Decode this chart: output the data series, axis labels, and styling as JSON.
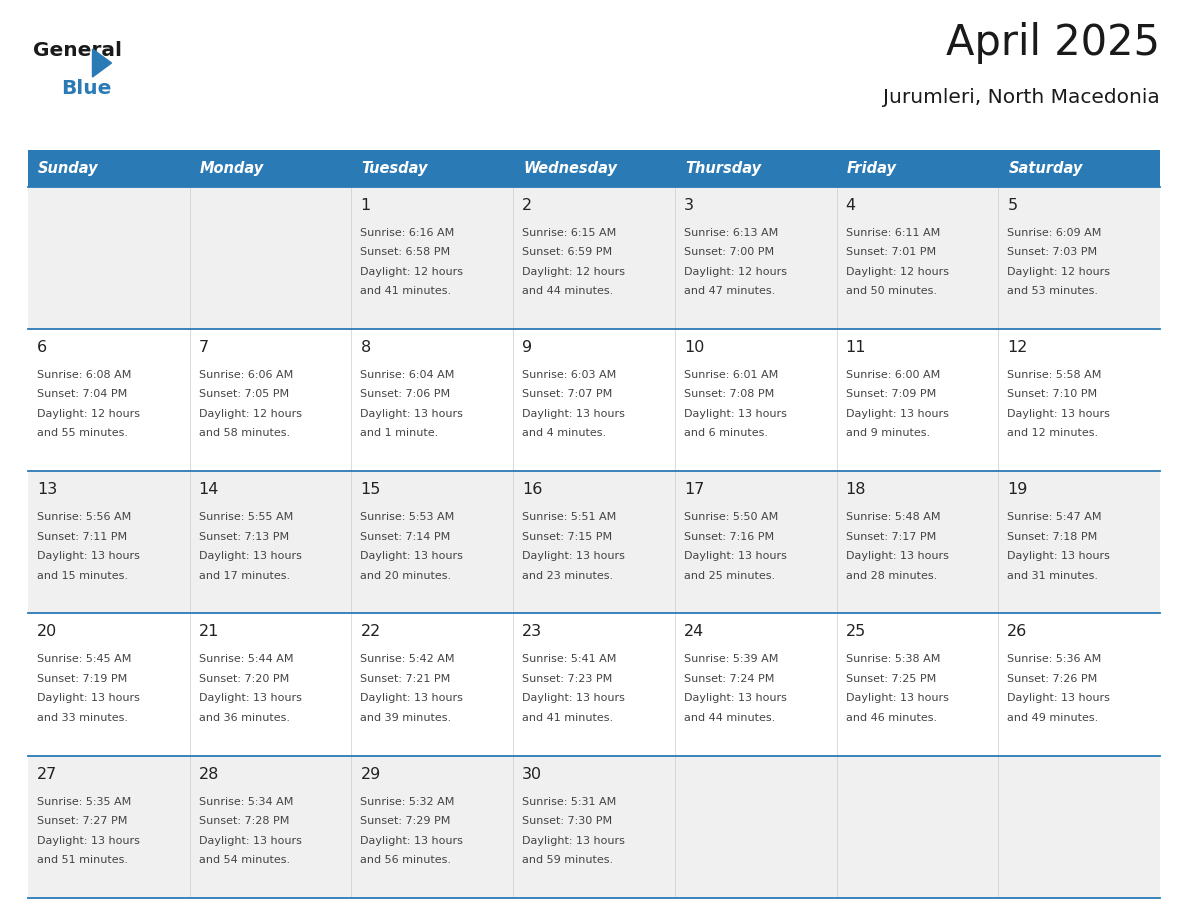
{
  "title": "April 2025",
  "subtitle": "Jurumleri, North Macedonia",
  "days_of_week": [
    "Sunday",
    "Monday",
    "Tuesday",
    "Wednesday",
    "Thursday",
    "Friday",
    "Saturday"
  ],
  "header_bg": "#2A7AB5",
  "header_text_color": "#FFFFFF",
  "row_bg_light": "#F0F0F0",
  "row_bg_white": "#FFFFFF",
  "cell_text_color": "#444444",
  "day_number_color": "#222222",
  "grid_line_color": "#2A7AB5",
  "title_color": "#1A1A1A",
  "subtitle_color": "#1A1A1A",
  "calendar": [
    [
      {
        "day": null,
        "sunrise": null,
        "sunset": null,
        "daylight": null
      },
      {
        "day": null,
        "sunrise": null,
        "sunset": null,
        "daylight": null
      },
      {
        "day": 1,
        "sunrise": "6:16 AM",
        "sunset": "6:58 PM",
        "daylight": "12 hours\nand 41 minutes."
      },
      {
        "day": 2,
        "sunrise": "6:15 AM",
        "sunset": "6:59 PM",
        "daylight": "12 hours\nand 44 minutes."
      },
      {
        "day": 3,
        "sunrise": "6:13 AM",
        "sunset": "7:00 PM",
        "daylight": "12 hours\nand 47 minutes."
      },
      {
        "day": 4,
        "sunrise": "6:11 AM",
        "sunset": "7:01 PM",
        "daylight": "12 hours\nand 50 minutes."
      },
      {
        "day": 5,
        "sunrise": "6:09 AM",
        "sunset": "7:03 PM",
        "daylight": "12 hours\nand 53 minutes."
      }
    ],
    [
      {
        "day": 6,
        "sunrise": "6:08 AM",
        "sunset": "7:04 PM",
        "daylight": "12 hours\nand 55 minutes."
      },
      {
        "day": 7,
        "sunrise": "6:06 AM",
        "sunset": "7:05 PM",
        "daylight": "12 hours\nand 58 minutes."
      },
      {
        "day": 8,
        "sunrise": "6:04 AM",
        "sunset": "7:06 PM",
        "daylight": "13 hours\nand 1 minute."
      },
      {
        "day": 9,
        "sunrise": "6:03 AM",
        "sunset": "7:07 PM",
        "daylight": "13 hours\nand 4 minutes."
      },
      {
        "day": 10,
        "sunrise": "6:01 AM",
        "sunset": "7:08 PM",
        "daylight": "13 hours\nand 6 minutes."
      },
      {
        "day": 11,
        "sunrise": "6:00 AM",
        "sunset": "7:09 PM",
        "daylight": "13 hours\nand 9 minutes."
      },
      {
        "day": 12,
        "sunrise": "5:58 AM",
        "sunset": "7:10 PM",
        "daylight": "13 hours\nand 12 minutes."
      }
    ],
    [
      {
        "day": 13,
        "sunrise": "5:56 AM",
        "sunset": "7:11 PM",
        "daylight": "13 hours\nand 15 minutes."
      },
      {
        "day": 14,
        "sunrise": "5:55 AM",
        "sunset": "7:13 PM",
        "daylight": "13 hours\nand 17 minutes."
      },
      {
        "day": 15,
        "sunrise": "5:53 AM",
        "sunset": "7:14 PM",
        "daylight": "13 hours\nand 20 minutes."
      },
      {
        "day": 16,
        "sunrise": "5:51 AM",
        "sunset": "7:15 PM",
        "daylight": "13 hours\nand 23 minutes."
      },
      {
        "day": 17,
        "sunrise": "5:50 AM",
        "sunset": "7:16 PM",
        "daylight": "13 hours\nand 25 minutes."
      },
      {
        "day": 18,
        "sunrise": "5:48 AM",
        "sunset": "7:17 PM",
        "daylight": "13 hours\nand 28 minutes."
      },
      {
        "day": 19,
        "sunrise": "5:47 AM",
        "sunset": "7:18 PM",
        "daylight": "13 hours\nand 31 minutes."
      }
    ],
    [
      {
        "day": 20,
        "sunrise": "5:45 AM",
        "sunset": "7:19 PM",
        "daylight": "13 hours\nand 33 minutes."
      },
      {
        "day": 21,
        "sunrise": "5:44 AM",
        "sunset": "7:20 PM",
        "daylight": "13 hours\nand 36 minutes."
      },
      {
        "day": 22,
        "sunrise": "5:42 AM",
        "sunset": "7:21 PM",
        "daylight": "13 hours\nand 39 minutes."
      },
      {
        "day": 23,
        "sunrise": "5:41 AM",
        "sunset": "7:23 PM",
        "daylight": "13 hours\nand 41 minutes."
      },
      {
        "day": 24,
        "sunrise": "5:39 AM",
        "sunset": "7:24 PM",
        "daylight": "13 hours\nand 44 minutes."
      },
      {
        "day": 25,
        "sunrise": "5:38 AM",
        "sunset": "7:25 PM",
        "daylight": "13 hours\nand 46 minutes."
      },
      {
        "day": 26,
        "sunrise": "5:36 AM",
        "sunset": "7:26 PM",
        "daylight": "13 hours\nand 49 minutes."
      }
    ],
    [
      {
        "day": 27,
        "sunrise": "5:35 AM",
        "sunset": "7:27 PM",
        "daylight": "13 hours\nand 51 minutes."
      },
      {
        "day": 28,
        "sunrise": "5:34 AM",
        "sunset": "7:28 PM",
        "daylight": "13 hours\nand 54 minutes."
      },
      {
        "day": 29,
        "sunrise": "5:32 AM",
        "sunset": "7:29 PM",
        "daylight": "13 hours\nand 56 minutes."
      },
      {
        "day": 30,
        "sunrise": "5:31 AM",
        "sunset": "7:30 PM",
        "daylight": "13 hours\nand 59 minutes."
      },
      {
        "day": null,
        "sunrise": null,
        "sunset": null,
        "daylight": null
      },
      {
        "day": null,
        "sunrise": null,
        "sunset": null,
        "daylight": null
      },
      {
        "day": null,
        "sunrise": null,
        "sunset": null,
        "daylight": null
      }
    ]
  ],
  "logo_text1_color": "#1A1A1A",
  "logo_text2_color": "#2A7AB5",
  "logo_triangle_color": "#2A7AB5"
}
